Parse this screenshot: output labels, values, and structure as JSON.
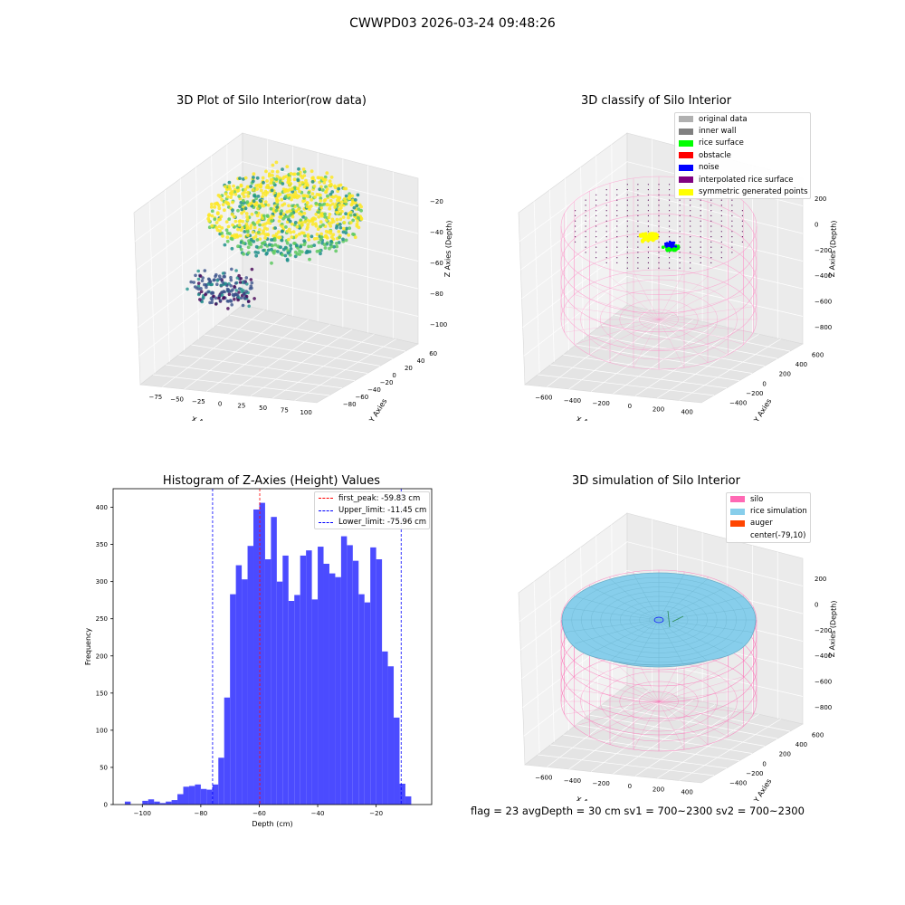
{
  "suptitle": "CWWPD03 2026-03-24 09:48:26",
  "flag_line": "flag = 23  avgDepth = 30 cm    sv1 = 700~2300  sv2 = 700~2300",
  "chart_data": [
    {
      "id": "raw3d",
      "type": "scatter",
      "title": "3D Plot of Silo Interior(row data)",
      "xlabel": "X Axies",
      "ylabel": "Y Axies",
      "zlabel": "Z Axies (Depth)",
      "x_ticks": [
        "−75",
        "−50",
        "−25",
        "0",
        "25",
        "50",
        "75",
        "100"
      ],
      "y_ticks": [
        "−80",
        "−60",
        "−40",
        "−20",
        "0",
        "20",
        "40",
        "60"
      ],
      "z_ticks": [
        "−100",
        "−80",
        "−60",
        "−40",
        "−20"
      ],
      "colormap": [
        "#440154",
        "#3b528b",
        "#21918c",
        "#5ec962",
        "#fde725"
      ]
    },
    {
      "id": "classify3d",
      "type": "scatter",
      "title": "3D classify of Silo Interior",
      "xlabel": "X Axies",
      "ylabel": "Y Axies",
      "zlabel": "Z Axies (Depth)",
      "x_ticks": [
        "−600",
        "−400",
        "−200",
        "0",
        "200",
        "400"
      ],
      "y_ticks": [
        "−400",
        "−200",
        "0",
        "200",
        "400",
        "600"
      ],
      "z_ticks": [
        "−800",
        "−600",
        "−400",
        "−200",
        "0",
        "200"
      ],
      "legend": [
        {
          "label": "original data",
          "color": "#b0b0b0"
        },
        {
          "label": "inner wall",
          "color": "#808080"
        },
        {
          "label": "rice surface",
          "color": "#00ff00"
        },
        {
          "label": "obstacle",
          "color": "#ff0000"
        },
        {
          "label": "noise",
          "color": "#0000ff"
        },
        {
          "label": "interpolated rice surface",
          "color": "#800080"
        },
        {
          "label": "symmetric generated points",
          "color": "#ffff00"
        }
      ]
    },
    {
      "id": "histogram",
      "type": "bar",
      "title": "Histogram of Z-Axies (Height) Values",
      "xlabel": "Depth (cm)",
      "ylabel": "Frequency",
      "xlim": [
        -110,
        -1
      ],
      "ylim": [
        0,
        425
      ],
      "bar_color": "#4b4bff",
      "bin_width": 2,
      "bin_start": -106,
      "values": [
        4,
        0,
        0,
        5,
        7,
        4,
        2,
        4,
        6,
        14,
        24,
        25,
        27,
        21,
        20,
        27,
        63,
        144,
        283,
        322,
        303,
        348,
        397,
        406,
        330,
        387,
        300,
        335,
        274,
        282,
        335,
        342,
        276,
        347,
        324,
        311,
        306,
        361,
        349,
        328,
        283,
        272,
        346,
        330,
        206,
        186,
        117,
        28,
        11
      ],
      "x_ticks": [
        -100,
        -80,
        -60,
        -40,
        -20
      ],
      "x_tick_labels": [
        "−100",
        "−80",
        "−60",
        "−40",
        "−20"
      ],
      "y_ticks": [
        0,
        50,
        100,
        150,
        200,
        250,
        300,
        350,
        400
      ],
      "lines": [
        {
          "label": "first_peak: -59.83 cm",
          "x": -59.83,
          "color": "#ff0000"
        },
        {
          "label": "Upper_limit: -11.45 cm",
          "x": -11.45,
          "color": "#0000ff"
        },
        {
          "label": "Lower_limit: -75.96 cm",
          "x": -75.96,
          "color": "#0000ff"
        }
      ]
    },
    {
      "id": "simulation3d",
      "type": "scatter",
      "title": "3D simulation of Silo Interior",
      "xlabel": "X Axies",
      "ylabel": "Y Axies",
      "zlabel": "Z Axies (Depth)",
      "x_ticks": [
        "−600",
        "−400",
        "−200",
        "0",
        "200",
        "400"
      ],
      "y_ticks": [
        "−400",
        "−200",
        "0",
        "200",
        "400",
        "600"
      ],
      "z_ticks": [
        "−800",
        "−600",
        "−400",
        "−200",
        "0",
        "200"
      ],
      "legend": [
        {
          "label": "silo",
          "color": "#ff69b4"
        },
        {
          "label": "rice simulation",
          "color": "#87ceeb"
        },
        {
          "label": "auger",
          "color": "#ff4500"
        },
        {
          "label": "center(-79,10)",
          "color": "#ffffff"
        }
      ]
    }
  ]
}
